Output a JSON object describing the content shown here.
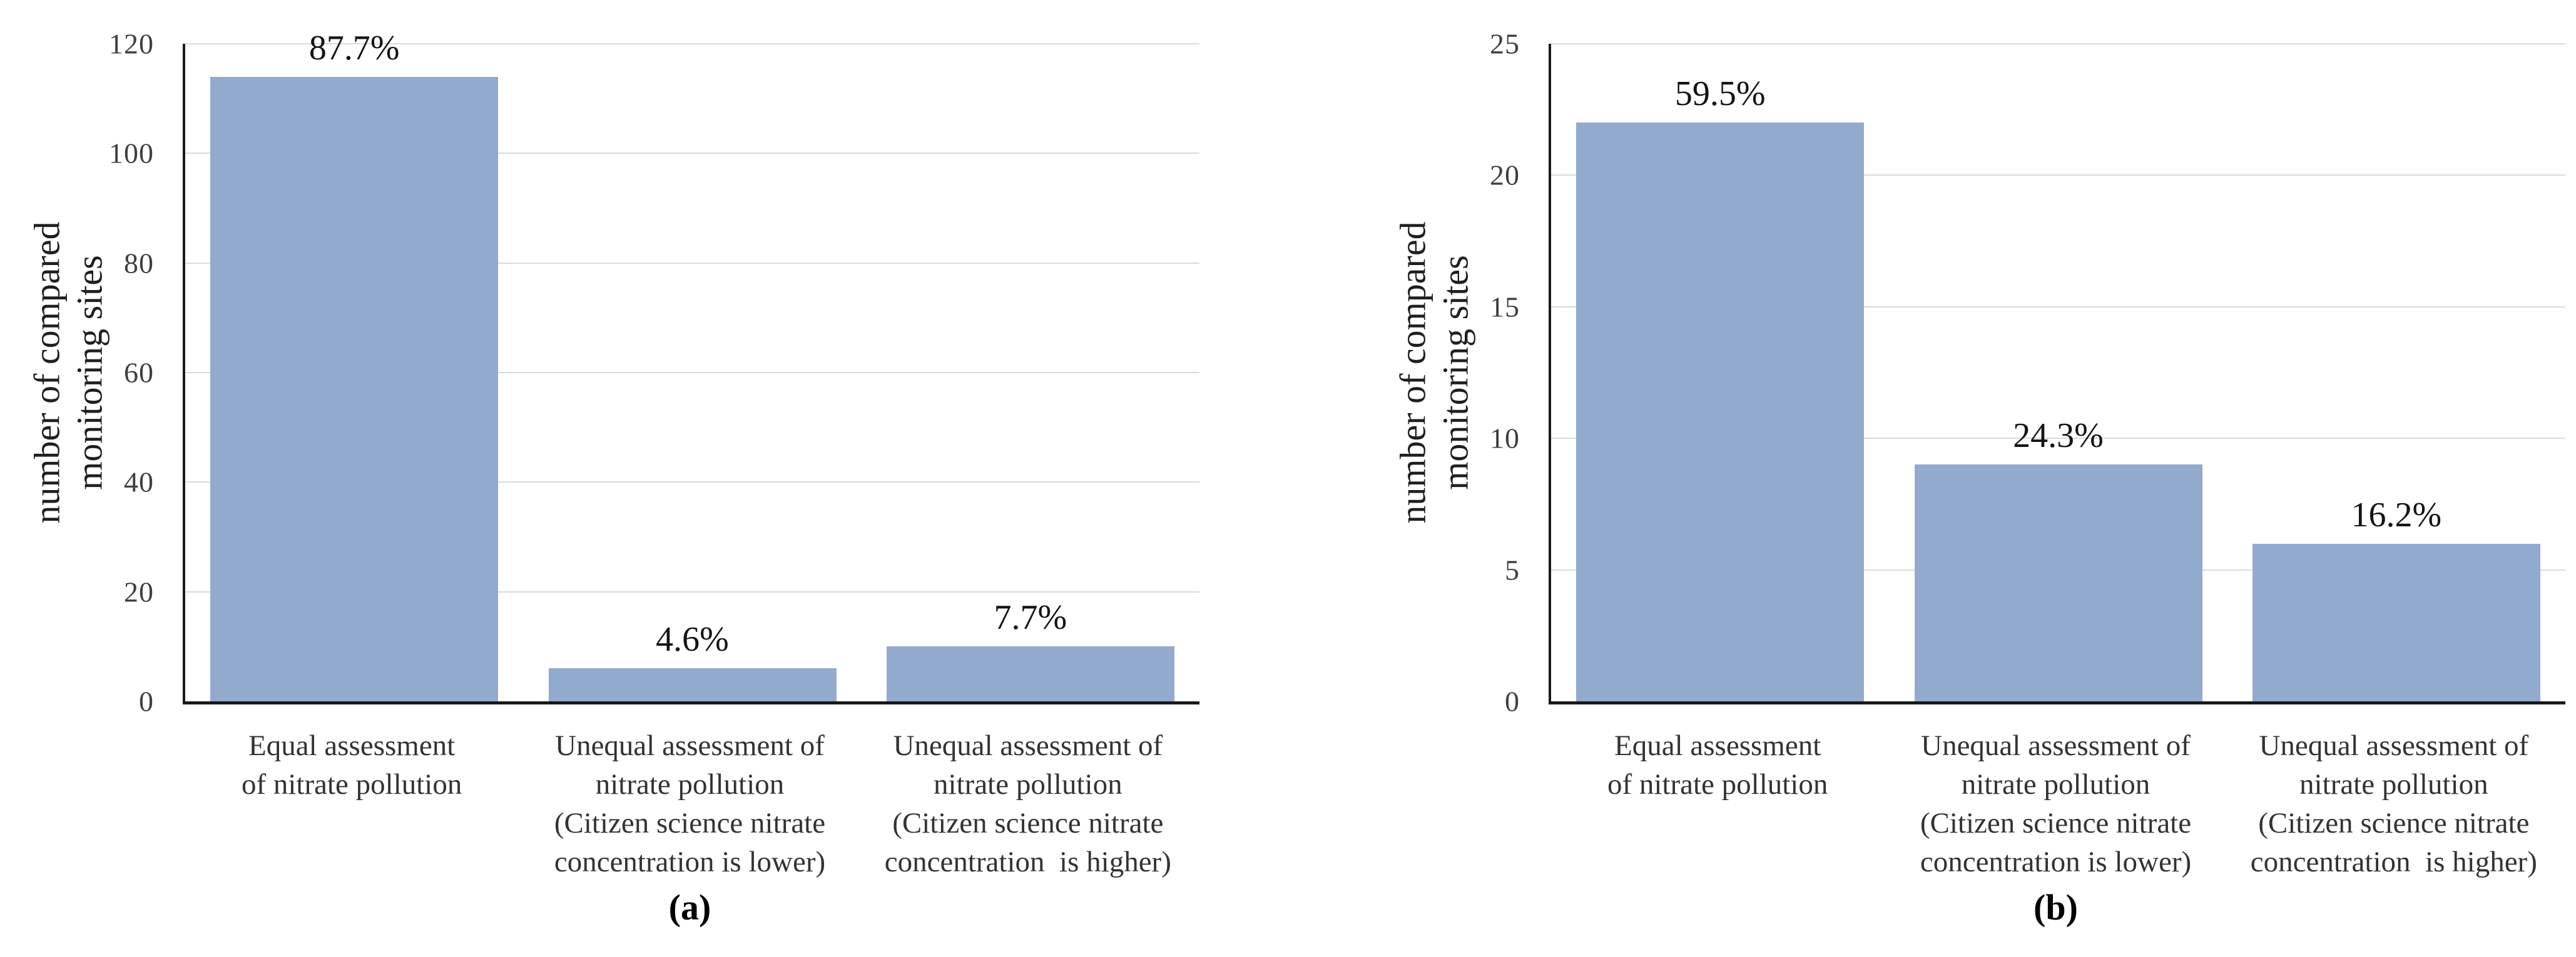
{
  "figure": {
    "background_color": "#ffffff",
    "gridline_color": "#dadada",
    "axis_color": "#1a1a1a"
  },
  "chart_data": [
    {
      "type": "bar",
      "caption": "(a)",
      "ylabel": "number of compared\nmonitoring sites",
      "categories": [
        "Equal assessment\nof nitrate pollution",
        "Unequal assessment of\nnitrate pollution\n(Citizen science nitrate\nconcentration is lower)",
        "Unequal assessment of\nnitrate pollution\n(Citizen science nitrate\nconcentration  is higher)"
      ],
      "values": [
        114,
        6,
        10
      ],
      "bar_labels": [
        "87.7%",
        "4.6%",
        "7.7%"
      ],
      "ylim": [
        0,
        120
      ],
      "yticks": [
        0,
        20,
        40,
        60,
        80,
        100,
        120
      ],
      "grid": true,
      "legend": "none",
      "bar_color": "#93AACF"
    },
    {
      "type": "bar",
      "caption": "(b)",
      "ylabel": "number of compared\nmonitoring sites",
      "categories": [
        "Equal assessment\nof nitrate pollution",
        "Unequal assessment of\nnitrate pollution\n(Citizen science nitrate\nconcentration is lower)",
        "Unequal assessment of\nnitrate pollution\n(Citizen science nitrate\nconcentration  is higher)"
      ],
      "values": [
        22,
        9,
        6
      ],
      "bar_labels": [
        "59.5%",
        "24.3%",
        "16.2%"
      ],
      "ylim": [
        0,
        25
      ],
      "yticks": [
        0,
        5,
        10,
        15,
        20,
        25
      ],
      "grid": true,
      "legend": "none",
      "bar_color": "#93AACF"
    }
  ]
}
